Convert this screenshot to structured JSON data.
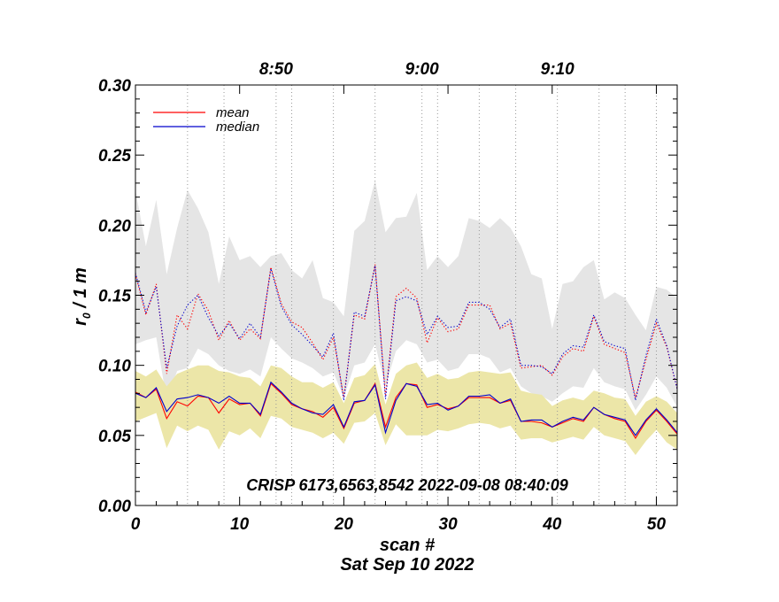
{
  "chart_data": {
    "type": "line",
    "title": "",
    "annotation": "CRISP 6173,6563,8542 2022-09-08 08:40:09",
    "xlabel": "scan #",
    "xlabel2": "Sat Sep 10 2022",
    "ylabel_base": "r",
    "ylabel_sub": "0",
    "ylabel_rest": " / 1 m",
    "xlim": [
      0,
      52
    ],
    "ylim": [
      0,
      0.3
    ],
    "x_ticks": [
      0,
      10,
      20,
      30,
      40,
      50
    ],
    "x_tick_labels": [
      "0",
      "10",
      "20",
      "30",
      "40",
      "50"
    ],
    "y_ticks": [
      0,
      0.05,
      0.1,
      0.15,
      0.2,
      0.25,
      0.3
    ],
    "y_tick_labels": [
      "0.00",
      "0.05",
      "0.10",
      "0.15",
      "0.20",
      "0.25",
      "0.30"
    ],
    "time_ticks": [
      {
        "scan": 13.5,
        "label": "8:50"
      },
      {
        "scan": 27.5,
        "label": "9:00"
      },
      {
        "scan": 40.5,
        "label": "9:10"
      }
    ],
    "time_gridlines": [
      5,
      8.5,
      13.5,
      15,
      19,
      23,
      27.5,
      29,
      33,
      36.5,
      40.5,
      44.5,
      47,
      50
    ],
    "legend": {
      "position": "top-left",
      "entries": [
        "mean",
        "median"
      ]
    },
    "colors": {
      "mean": "#ff0000",
      "median": "#0000cc",
      "upper_band": "#e5e5e5",
      "lower_band": "#ece6a8"
    },
    "x": [
      0,
      1,
      2,
      3,
      4,
      5,
      6,
      7,
      8,
      9,
      10,
      11,
      12,
      13,
      14,
      15,
      16,
      17,
      18,
      19,
      20,
      21,
      22,
      23,
      24,
      25,
      26,
      27,
      28,
      29,
      30,
      31,
      32,
      33,
      34,
      35,
      36,
      37,
      38,
      39,
      40,
      41,
      42,
      43,
      44,
      45,
      46,
      47,
      48,
      49,
      50,
      51,
      52
    ],
    "series": [
      {
        "name": "mean",
        "group": "lower",
        "style": "solid",
        "values": [
          0.081,
          0.077,
          0.083,
          0.062,
          0.074,
          0.071,
          0.078,
          0.077,
          0.066,
          0.076,
          0.072,
          0.073,
          0.064,
          0.087,
          0.08,
          0.072,
          0.069,
          0.067,
          0.063,
          0.07,
          0.055,
          0.073,
          0.075,
          0.087,
          0.056,
          0.077,
          0.087,
          0.086,
          0.07,
          0.072,
          0.069,
          0.071,
          0.077,
          0.077,
          0.077,
          0.073,
          0.075,
          0.06,
          0.06,
          0.059,
          0.056,
          0.059,
          0.062,
          0.06,
          0.07,
          0.065,
          0.062,
          0.06,
          0.048,
          0.06,
          0.068,
          0.06,
          0.051
        ]
      },
      {
        "name": "median",
        "group": "lower",
        "style": "solid",
        "values": [
          0.08,
          0.077,
          0.084,
          0.067,
          0.076,
          0.077,
          0.079,
          0.077,
          0.073,
          0.078,
          0.073,
          0.073,
          0.065,
          0.088,
          0.081,
          0.073,
          0.069,
          0.066,
          0.065,
          0.072,
          0.056,
          0.074,
          0.075,
          0.086,
          0.052,
          0.075,
          0.087,
          0.085,
          0.072,
          0.073,
          0.068,
          0.071,
          0.078,
          0.078,
          0.079,
          0.073,
          0.076,
          0.06,
          0.061,
          0.061,
          0.056,
          0.06,
          0.063,
          0.061,
          0.07,
          0.065,
          0.063,
          0.061,
          0.05,
          0.061,
          0.069,
          0.061,
          0.052
        ]
      },
      {
        "name": "mean",
        "group": "upper",
        "style": "dotted",
        "values": [
          0.165,
          0.136,
          0.158,
          0.094,
          0.136,
          0.126,
          0.151,
          0.139,
          0.118,
          0.132,
          0.118,
          0.126,
          0.119,
          0.17,
          0.144,
          0.131,
          0.127,
          0.116,
          0.104,
          0.12,
          0.077,
          0.136,
          0.133,
          0.172,
          0.078,
          0.149,
          0.155,
          0.148,
          0.116,
          0.134,
          0.124,
          0.126,
          0.143,
          0.143,
          0.143,
          0.126,
          0.13,
          0.098,
          0.099,
          0.1,
          0.093,
          0.106,
          0.112,
          0.11,
          0.135,
          0.115,
          0.112,
          0.109,
          0.077,
          0.104,
          0.13,
          0.113,
          0.083
        ]
      },
      {
        "name": "median",
        "group": "upper",
        "style": "dotted",
        "values": [
          0.166,
          0.138,
          0.156,
          0.098,
          0.128,
          0.143,
          0.15,
          0.134,
          0.121,
          0.13,
          0.119,
          0.13,
          0.12,
          0.169,
          0.142,
          0.129,
          0.122,
          0.114,
          0.106,
          0.123,
          0.075,
          0.138,
          0.135,
          0.171,
          0.076,
          0.146,
          0.149,
          0.146,
          0.122,
          0.135,
          0.127,
          0.128,
          0.145,
          0.145,
          0.14,
          0.127,
          0.133,
          0.1,
          0.1,
          0.099,
          0.094,
          0.108,
          0.114,
          0.113,
          0.136,
          0.117,
          0.114,
          0.112,
          0.075,
          0.107,
          0.133,
          0.114,
          0.083
        ]
      }
    ],
    "bands": [
      {
        "name": "upper-band",
        "color": "#e5e5e5",
        "upper": [
          0.225,
          0.185,
          0.218,
          0.165,
          0.198,
          0.225,
          0.212,
          0.195,
          0.158,
          0.192,
          0.175,
          0.178,
          0.17,
          0.178,
          0.18,
          0.168,
          0.162,
          0.175,
          0.148,
          0.145,
          0.135,
          0.196,
          0.203,
          0.232,
          0.195,
          0.205,
          0.206,
          0.223,
          0.168,
          0.178,
          0.17,
          0.178,
          0.205,
          0.203,
          0.198,
          0.205,
          0.198,
          0.185,
          0.165,
          0.162,
          0.126,
          0.158,
          0.16,
          0.17,
          0.175,
          0.147,
          0.152,
          0.148,
          0.136,
          0.125,
          0.156,
          0.154,
          0.148
        ],
        "lower": [
          0.115,
          0.118,
          0.12,
          0.075,
          0.096,
          0.098,
          0.112,
          0.108,
          0.1,
          0.096,
          0.094,
          0.097,
          0.092,
          0.12,
          0.112,
          0.105,
          0.102,
          0.098,
          0.092,
          0.095,
          0.077,
          0.1,
          0.102,
          0.115,
          0.085,
          0.11,
          0.118,
          0.115,
          0.102,
          0.104,
          0.096,
          0.098,
          0.108,
          0.108,
          0.105,
          0.095,
          0.098,
          0.085,
          0.08,
          0.078,
          0.074,
          0.08,
          0.085,
          0.084,
          0.098,
          0.088,
          0.085,
          0.083,
          0.068,
          0.079,
          0.092,
          0.084,
          0.07
        ]
      },
      {
        "name": "lower-band",
        "color": "#ece6a8",
        "upper": [
          0.096,
          0.092,
          0.097,
          0.085,
          0.094,
          0.097,
          0.1,
          0.1,
          0.096,
          0.095,
          0.092,
          0.091,
          0.085,
          0.1,
          0.098,
          0.092,
          0.088,
          0.088,
          0.084,
          0.088,
          0.073,
          0.091,
          0.093,
          0.101,
          0.072,
          0.094,
          0.1,
          0.102,
          0.091,
          0.094,
          0.09,
          0.091,
          0.095,
          0.096,
          0.095,
          0.094,
          0.095,
          0.082,
          0.08,
          0.079,
          0.071,
          0.075,
          0.077,
          0.075,
          0.082,
          0.08,
          0.077,
          0.076,
          0.064,
          0.074,
          0.078,
          0.074,
          0.066
        ],
        "lower": [
          0.06,
          0.063,
          0.066,
          0.041,
          0.057,
          0.053,
          0.057,
          0.054,
          0.04,
          0.053,
          0.05,
          0.055,
          0.048,
          0.064,
          0.062,
          0.056,
          0.054,
          0.052,
          0.048,
          0.052,
          0.044,
          0.059,
          0.06,
          0.066,
          0.043,
          0.058,
          0.05,
          0.05,
          0.05,
          0.054,
          0.053,
          0.055,
          0.058,
          0.059,
          0.058,
          0.055,
          0.057,
          0.047,
          0.048,
          0.048,
          0.045,
          0.047,
          0.049,
          0.047,
          0.056,
          0.05,
          0.048,
          0.046,
          0.036,
          0.046,
          0.054,
          0.045,
          0.04
        ]
      }
    ]
  }
}
